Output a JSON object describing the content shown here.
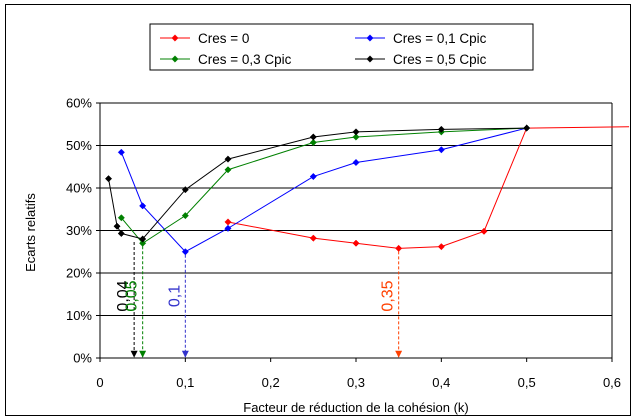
{
  "chart_data": {
    "type": "line",
    "xlabel": "Facteur de réduction de la cohésion (k)",
    "ylabel": "Ecarts relatifs",
    "xlim": [
      0,
      0.6
    ],
    "ylim": [
      0,
      0.6
    ],
    "x_ticks": [
      "0",
      "0,1",
      "0,2",
      "0,3",
      "0,4",
      "0,5",
      "0,6"
    ],
    "x_tick_values": [
      0,
      0.1,
      0.2,
      0.3,
      0.4,
      0.5,
      0.6
    ],
    "y_ticks": [
      "0%",
      "10%",
      "20%",
      "30%",
      "40%",
      "50%",
      "60%"
    ],
    "y_tick_values": [
      0,
      0.1,
      0.2,
      0.3,
      0.4,
      0.5,
      0.6
    ],
    "grid": "horizontal",
    "legend_position": "top",
    "series": [
      {
        "name": "Cres = 0",
        "color": "#ff0000",
        "points": [
          [
            0.15,
            0.32
          ],
          [
            0.25,
            0.282
          ],
          [
            0.3,
            0.27
          ],
          [
            0.35,
            0.258
          ],
          [
            0.4,
            0.262
          ],
          [
            0.45,
            0.298
          ],
          [
            0.5,
            0.541
          ]
        ],
        "extension": [
          [
            0.5,
            0.541
          ],
          [
            0.62,
            0.544
          ]
        ]
      },
      {
        "name": "Cres = 0,1 Cpic",
        "color": "#0000ff",
        "points": [
          [
            0.025,
            0.484
          ],
          [
            0.05,
            0.358
          ],
          [
            0.1,
            0.25
          ],
          [
            0.15,
            0.305
          ],
          [
            0.25,
            0.427
          ],
          [
            0.3,
            0.46
          ],
          [
            0.4,
            0.49
          ],
          [
            0.5,
            0.541
          ]
        ]
      },
      {
        "name": "Cres = 0,3 Cpic",
        "color": "#008000",
        "points": [
          [
            0.025,
            0.33
          ],
          [
            0.05,
            0.27
          ],
          [
            0.1,
            0.335
          ],
          [
            0.15,
            0.443
          ],
          [
            0.25,
            0.507
          ],
          [
            0.3,
            0.52
          ],
          [
            0.4,
            0.532
          ],
          [
            0.5,
            0.541
          ]
        ]
      },
      {
        "name": "Cres = 0,5 Cpic",
        "color": "#000000",
        "points": [
          [
            0.01,
            0.422
          ],
          [
            0.02,
            0.31
          ],
          [
            0.025,
            0.293
          ],
          [
            0.05,
            0.28
          ],
          [
            0.1,
            0.396
          ],
          [
            0.15,
            0.468
          ],
          [
            0.25,
            0.52
          ],
          [
            0.3,
            0.532
          ],
          [
            0.4,
            0.538
          ],
          [
            0.5,
            0.541
          ]
        ]
      }
    ],
    "annotations": [
      {
        "text": "0,04",
        "x": 0.04,
        "color": "#000000",
        "y_from": 0.28
      },
      {
        "text": "0,05",
        "x": 0.05,
        "color": "#008000",
        "y_from": 0.27
      },
      {
        "text": "0,1",
        "x": 0.1,
        "color": "#3333cc",
        "y_from": 0.25
      },
      {
        "text": "0,35",
        "x": 0.35,
        "color": "#ff4000",
        "y_from": 0.258
      }
    ]
  }
}
